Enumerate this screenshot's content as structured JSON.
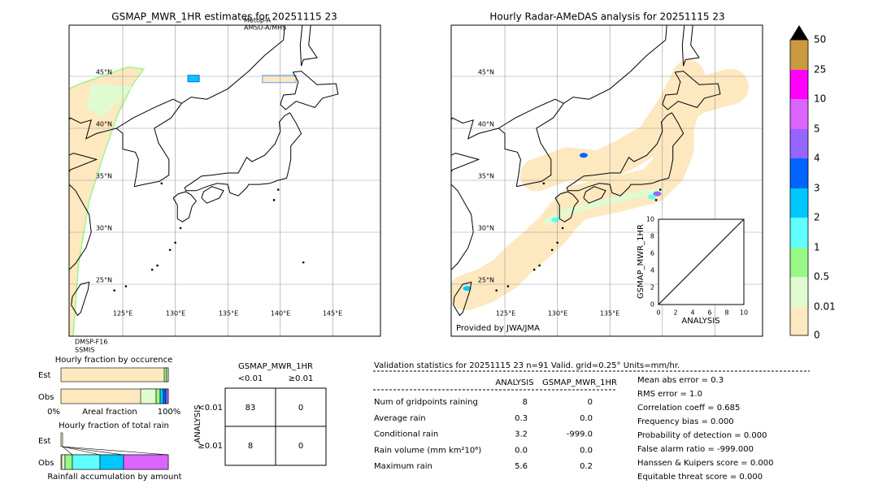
{
  "left_map": {
    "title": "GSMAP_MWR_1HR estimates for 20251115 23",
    "sensor_top": [
      "Metop-A",
      "AMSU-A/MHS"
    ],
    "sensor_bottom": [
      "DMSP-F16",
      "SSMIS"
    ],
    "lat_labels": [
      "45°N",
      "40°N",
      "35°N",
      "30°N",
      "25°N"
    ],
    "lon_labels": [
      "125°E",
      "130°E",
      "135°E",
      "140°E",
      "145°E"
    ]
  },
  "right_map": {
    "title": "Hourly Radar-AMeDAS analysis for 20251115 23",
    "lat_labels": [
      "45°N",
      "40°N",
      "35°N",
      "30°N",
      "25°N"
    ],
    "lon_labels": [
      "125°E",
      "130°E",
      "135°E"
    ],
    "credit": "Provided by JWA/JMA"
  },
  "scatter_inset": {
    "y_label": "GSMAP_MWR_1HR",
    "x_label": "ANALYSIS",
    "ticks": [
      "0",
      "2",
      "4",
      "6",
      "8",
      "10"
    ]
  },
  "colorbar": {
    "labels": [
      "0",
      "0.01",
      "0.5",
      "1",
      "2",
      "3",
      "4",
      "5",
      "10",
      "25",
      "50"
    ]
  },
  "occurrence": {
    "title": "Hourly fraction by occurence",
    "rows": [
      "Est",
      "Obs"
    ],
    "axis": [
      "0%",
      "Areal fraction",
      "100%"
    ]
  },
  "total_rain": {
    "title": "Hourly fraction of total rain",
    "rows": [
      "Est",
      "Obs"
    ],
    "caption": "Rainfall accumulation by amount"
  },
  "contingency": {
    "title": "GSMAP_MWR_1HR",
    "columns": [
      "<0.01",
      "≥0.01"
    ],
    "row_axis": "ANALYSIS",
    "rows": [
      "<0.01",
      "≥0.01"
    ],
    "cells": [
      [
        "83",
        "0"
      ],
      [
        "8",
        "0"
      ]
    ]
  },
  "validation": {
    "header": "Validation statistics for 20251115 23  n=91 Valid. grid=0.25° Units=mm/hr.",
    "columns": [
      "ANALYSIS",
      "GSMAP_MWR_1HR"
    ],
    "rows": [
      [
        "Num of gridpoints raining",
        "8",
        "0"
      ],
      [
        "Average rain",
        "0.3",
        "0.0"
      ],
      [
        "Conditional rain",
        "3.2",
        "-999.0"
      ],
      [
        "Rain volume (mm km²10⁶)",
        "0.0",
        "0.0"
      ],
      [
        "Maximum rain",
        "5.6",
        "0.2"
      ]
    ]
  },
  "scores": [
    "Mean abs error =    0.3",
    "RMS error =    1.0",
    "Correlation coeff =  0.685",
    "Frequency bias =  0.000",
    "Probability of detection =  0.000",
    "False alarm ratio = -999.000",
    "Hanssen & Kuipers score =  0.000",
    "Equitable threat score =  0.000"
  ]
}
